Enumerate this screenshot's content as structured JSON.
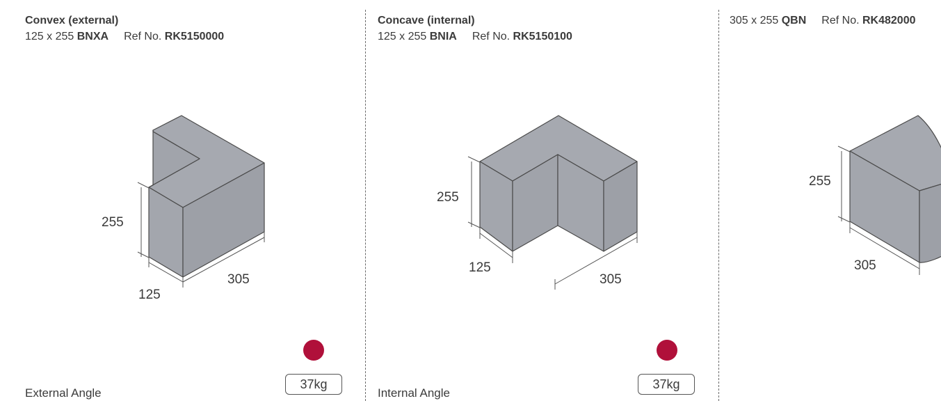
{
  "colors": {
    "face_top": "#a6a9b0",
    "face_left": "#a3a6ad",
    "face_right": "#9da0a7",
    "accent_dot": "#b0103a"
  },
  "panels": [
    {
      "title": "Convex (external)",
      "size": "125 x 255",
      "code": "BNXA",
      "ref_label": "Ref No.",
      "ref": "RK5150000",
      "dims": {
        "height": "255",
        "width": "125",
        "length": "305"
      },
      "footer": "External Angle",
      "weight": "37kg"
    },
    {
      "title": "Concave (internal)",
      "size": "125 x 255",
      "code": "BNIA",
      "ref_label": "Ref No.",
      "ref": "RK5150100",
      "dims": {
        "height": "255",
        "width": "125",
        "length": "305"
      },
      "footer": "Internal Angle",
      "weight": "37kg"
    },
    {
      "size": "305 x 255",
      "code": "QBN",
      "ref_label": "Ref No.",
      "ref": "RK482000",
      "dims": {
        "height": "255",
        "length": "305"
      }
    }
  ]
}
